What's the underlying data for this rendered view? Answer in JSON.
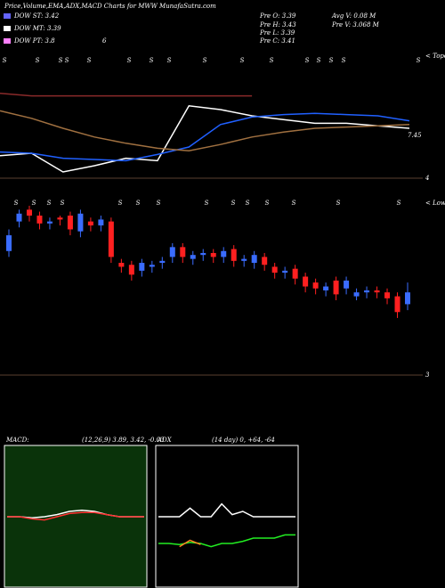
{
  "chart_data": {
    "type": "candlestick",
    "title": "Price,Volume,EMA,ADX,MACD Charts for MWW MunafaSutra.com",
    "dow_lines": [
      "DOW ST: 3.42",
      "DOW MT: 3.39",
      "DOW PT: 3.8"
    ],
    "dow_extra": "6",
    "pre": [
      "Pre O: 3.39",
      "Pre H: 3.43",
      "Pre L: 3.39",
      "Pre C: 3.41"
    ],
    "volume": [
      "Avg V: 0.08 M",
      "Pre V: 3.068 M"
    ],
    "ema_panel": {
      "label": "< Tope",
      "last_label": "7.45",
      "signals": [
        "S",
        "S",
        "S",
        "S",
        "S",
        "S",
        "S",
        "S",
        "S",
        "S",
        "S",
        "S",
        "S",
        "S",
        "S",
        "S"
      ],
      "ylim": [
        0,
        100
      ],
      "series": [
        {
          "color": "#ffffff",
          "values": [
            18,
            20,
            5,
            10,
            16,
            14,
            58,
            55,
            50,
            47,
            44,
            44,
            42,
            40
          ]
        },
        {
          "color": "#2060ff",
          "values": [
            21,
            20,
            16,
            15,
            14,
            19,
            25,
            43,
            49,
            51,
            52,
            51,
            50,
            46
          ]
        },
        {
          "color": "#8a2a2a",
          "values": [
            68,
            66,
            66,
            66,
            66,
            66,
            66,
            66,
            66,
            null,
            null,
            null,
            null,
            null
          ]
        },
        {
          "color": "#a07040",
          "values": [
            54,
            48,
            40,
            33,
            28,
            24,
            22,
            27,
            33,
            37,
            40,
            41,
            42,
            43
          ]
        }
      ]
    },
    "price_panel": {
      "label": "< Lows",
      "ylim": [
        3,
        4
      ],
      "yticks": [
        3,
        4
      ],
      "up_color": "#3a6cff",
      "down_color": "#ff2020",
      "signals": [
        "S",
        "S",
        "S",
        "S",
        "S",
        "S",
        "S",
        "S",
        "S",
        "S",
        "S",
        "S",
        "S",
        "S"
      ],
      "open": [
        3.63,
        3.78,
        3.84,
        3.81,
        3.77,
        3.8,
        3.81,
        3.73,
        3.78,
        3.76,
        3.78,
        3.57,
        3.56,
        3.53,
        3.55,
        3.57,
        3.6,
        3.65,
        3.59,
        3.61,
        3.62,
        3.6,
        3.64,
        3.58,
        3.57,
        3.6,
        3.55,
        3.52,
        3.54,
        3.5,
        3.47,
        3.43,
        3.48,
        3.44,
        3.4,
        3.42,
        3.43,
        3.42,
        3.4,
        3.36
      ],
      "high": [
        3.74,
        3.84,
        3.86,
        3.83,
        3.8,
        3.81,
        3.83,
        3.84,
        3.8,
        3.81,
        3.8,
        3.59,
        3.58,
        3.59,
        3.58,
        3.6,
        3.67,
        3.67,
        3.63,
        3.64,
        3.64,
        3.65,
        3.66,
        3.61,
        3.63,
        3.62,
        3.57,
        3.55,
        3.56,
        3.52,
        3.49,
        3.47,
        3.5,
        3.5,
        3.44,
        3.45,
        3.45,
        3.44,
        3.42,
        3.47
      ],
      "low": [
        3.6,
        3.75,
        3.78,
        3.74,
        3.74,
        3.76,
        3.71,
        3.7,
        3.73,
        3.73,
        3.57,
        3.52,
        3.48,
        3.5,
        3.52,
        3.54,
        3.57,
        3.57,
        3.56,
        3.58,
        3.57,
        3.57,
        3.55,
        3.55,
        3.54,
        3.53,
        3.49,
        3.49,
        3.46,
        3.42,
        3.41,
        3.4,
        3.38,
        3.41,
        3.38,
        3.39,
        3.39,
        3.36,
        3.29,
        3.33
      ],
      "close": [
        3.71,
        3.82,
        3.81,
        3.77,
        3.78,
        3.79,
        3.74,
        3.82,
        3.76,
        3.79,
        3.6,
        3.55,
        3.51,
        3.57,
        3.56,
        3.58,
        3.65,
        3.6,
        3.61,
        3.62,
        3.6,
        3.63,
        3.58,
        3.59,
        3.61,
        3.56,
        3.52,
        3.53,
        3.49,
        3.45,
        3.44,
        3.45,
        3.41,
        3.48,
        3.42,
        3.43,
        3.42,
        3.39,
        3.32,
        3.42
      ]
    },
    "macd_panel": {
      "label": "MACD:",
      "params": "(12,26,9) 3.89, 3.42, -0.03",
      "ylim": [
        0,
        100
      ],
      "series": [
        {
          "color": "#ffffff",
          "values": [
            50,
            50,
            49,
            50,
            52,
            55,
            56,
            55,
            52,
            50,
            50,
            50
          ]
        },
        {
          "color": "#ff3030",
          "values": [
            50,
            50,
            48,
            47,
            50,
            53,
            54,
            54,
            52,
            50,
            50,
            50
          ]
        }
      ]
    },
    "adx_panel": {
      "label": "ADX",
      "params": "(14 day) 0, +64, -64",
      "ylim": [
        0,
        100
      ],
      "series": [
        {
          "color": "#ffffff",
          "values": [
            50,
            50,
            50,
            58,
            50,
            50,
            62,
            52,
            55,
            50,
            50,
            50,
            50,
            50
          ]
        },
        {
          "color": "#22ee22",
          "values": [
            25,
            25,
            24,
            26,
            25,
            22,
            25,
            25,
            27,
            30,
            30,
            30,
            33,
            33
          ]
        },
        {
          "color": "#ff8020",
          "values": [
            null,
            null,
            22,
            28,
            24,
            null,
            null,
            null,
            null,
            null,
            null,
            null,
            null,
            null
          ]
        }
      ]
    }
  }
}
